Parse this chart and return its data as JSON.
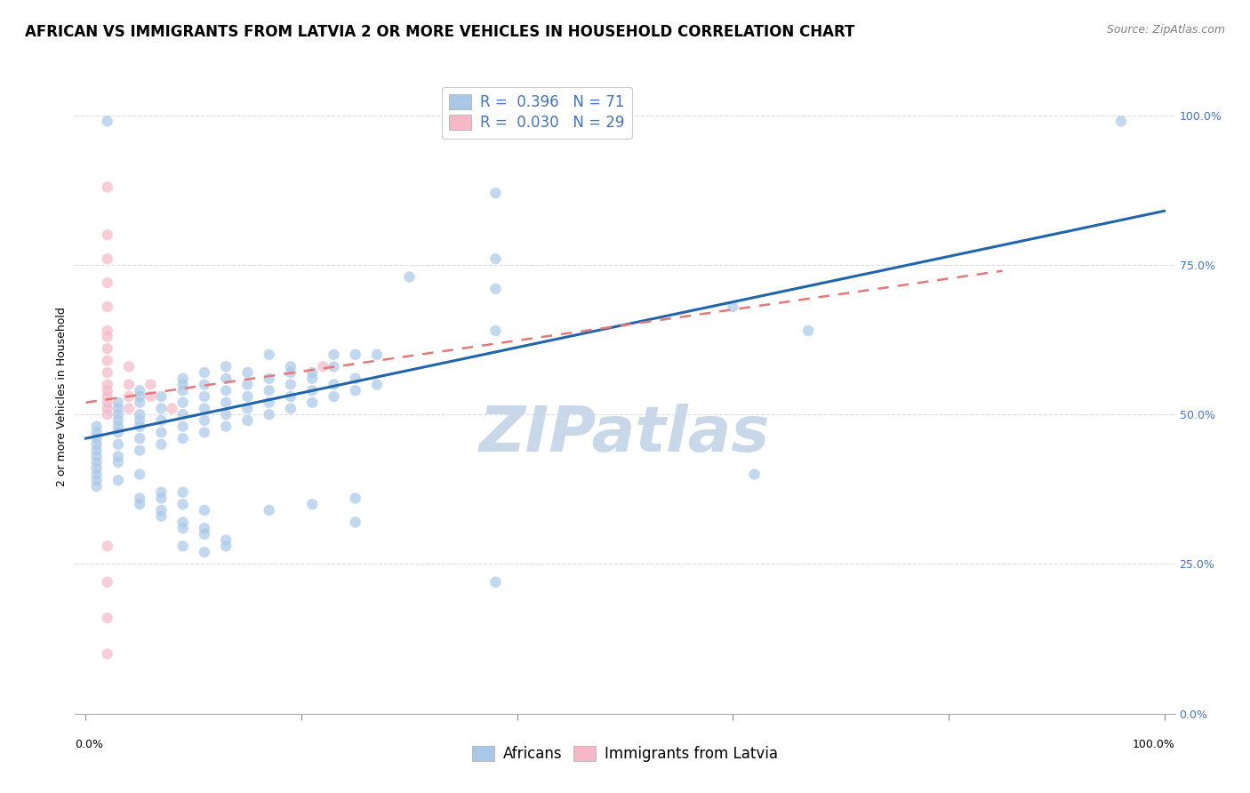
{
  "title": "AFRICAN VS IMMIGRANTS FROM LATVIA 2 OR MORE VEHICLES IN HOUSEHOLD CORRELATION CHART",
  "source": "Source: ZipAtlas.com",
  "ylabel": "2 or more Vehicles in Household",
  "y_tick_labels": [
    "0.0%",
    "25.0%",
    "50.0%",
    "75.0%",
    "100.0%"
  ],
  "y_tick_values": [
    0.0,
    0.25,
    0.5,
    0.75,
    1.0
  ],
  "watermark": "ZIPatlas",
  "blue_color": "#a8c8e8",
  "pink_color": "#f4b8c8",
  "blue_line_color": "#2166ac",
  "pink_line_color": "#e87878",
  "blue_scatter": [
    [
      0.02,
      0.99
    ],
    [
      0.3,
      0.73
    ],
    [
      0.96,
      0.99
    ],
    [
      0.38,
      0.87
    ],
    [
      0.38,
      0.76
    ],
    [
      0.38,
      0.71
    ],
    [
      0.6,
      0.68
    ],
    [
      0.38,
      0.64
    ],
    [
      0.67,
      0.64
    ],
    [
      0.17,
      0.6
    ],
    [
      0.23,
      0.6
    ],
    [
      0.25,
      0.6
    ],
    [
      0.27,
      0.6
    ],
    [
      0.13,
      0.58
    ],
    [
      0.19,
      0.58
    ],
    [
      0.23,
      0.58
    ],
    [
      0.11,
      0.57
    ],
    [
      0.15,
      0.57
    ],
    [
      0.19,
      0.57
    ],
    [
      0.21,
      0.57
    ],
    [
      0.09,
      0.56
    ],
    [
      0.13,
      0.56
    ],
    [
      0.17,
      0.56
    ],
    [
      0.21,
      0.56
    ],
    [
      0.25,
      0.56
    ],
    [
      0.09,
      0.55
    ],
    [
      0.11,
      0.55
    ],
    [
      0.15,
      0.55
    ],
    [
      0.19,
      0.55
    ],
    [
      0.23,
      0.55
    ],
    [
      0.27,
      0.55
    ],
    [
      0.05,
      0.54
    ],
    [
      0.09,
      0.54
    ],
    [
      0.13,
      0.54
    ],
    [
      0.17,
      0.54
    ],
    [
      0.21,
      0.54
    ],
    [
      0.25,
      0.54
    ],
    [
      0.05,
      0.53
    ],
    [
      0.07,
      0.53
    ],
    [
      0.11,
      0.53
    ],
    [
      0.15,
      0.53
    ],
    [
      0.19,
      0.53
    ],
    [
      0.23,
      0.53
    ],
    [
      0.03,
      0.52
    ],
    [
      0.05,
      0.52
    ],
    [
      0.09,
      0.52
    ],
    [
      0.13,
      0.52
    ],
    [
      0.17,
      0.52
    ],
    [
      0.21,
      0.52
    ],
    [
      0.03,
      0.51
    ],
    [
      0.07,
      0.51
    ],
    [
      0.11,
      0.51
    ],
    [
      0.15,
      0.51
    ],
    [
      0.19,
      0.51
    ],
    [
      0.03,
      0.5
    ],
    [
      0.05,
      0.5
    ],
    [
      0.09,
      0.5
    ],
    [
      0.13,
      0.5
    ],
    [
      0.17,
      0.5
    ],
    [
      0.03,
      0.49
    ],
    [
      0.05,
      0.49
    ],
    [
      0.07,
      0.49
    ],
    [
      0.11,
      0.49
    ],
    [
      0.15,
      0.49
    ],
    [
      0.01,
      0.48
    ],
    [
      0.03,
      0.48
    ],
    [
      0.05,
      0.48
    ],
    [
      0.09,
      0.48
    ],
    [
      0.13,
      0.48
    ],
    [
      0.01,
      0.47
    ],
    [
      0.03,
      0.47
    ],
    [
      0.07,
      0.47
    ],
    [
      0.11,
      0.47
    ],
    [
      0.01,
      0.46
    ],
    [
      0.05,
      0.46
    ],
    [
      0.09,
      0.46
    ],
    [
      0.01,
      0.45
    ],
    [
      0.03,
      0.45
    ],
    [
      0.07,
      0.45
    ],
    [
      0.01,
      0.44
    ],
    [
      0.05,
      0.44
    ],
    [
      0.01,
      0.43
    ],
    [
      0.03,
      0.43
    ],
    [
      0.01,
      0.42
    ],
    [
      0.03,
      0.42
    ],
    [
      0.01,
      0.41
    ],
    [
      0.01,
      0.4
    ],
    [
      0.05,
      0.4
    ],
    [
      0.01,
      0.39
    ],
    [
      0.03,
      0.39
    ],
    [
      0.01,
      0.38
    ],
    [
      0.07,
      0.37
    ],
    [
      0.09,
      0.37
    ],
    [
      0.05,
      0.36
    ],
    [
      0.07,
      0.36
    ],
    [
      0.25,
      0.36
    ],
    [
      0.05,
      0.35
    ],
    [
      0.09,
      0.35
    ],
    [
      0.21,
      0.35
    ],
    [
      0.07,
      0.34
    ],
    [
      0.11,
      0.34
    ],
    [
      0.17,
      0.34
    ],
    [
      0.07,
      0.33
    ],
    [
      0.09,
      0.32
    ],
    [
      0.25,
      0.32
    ],
    [
      0.09,
      0.31
    ],
    [
      0.11,
      0.31
    ],
    [
      0.11,
      0.3
    ],
    [
      0.13,
      0.29
    ],
    [
      0.09,
      0.28
    ],
    [
      0.13,
      0.28
    ],
    [
      0.11,
      0.27
    ],
    [
      0.62,
      0.4
    ],
    [
      0.38,
      0.22
    ]
  ],
  "pink_scatter": [
    [
      0.02,
      0.88
    ],
    [
      0.02,
      0.8
    ],
    [
      0.02,
      0.76
    ],
    [
      0.02,
      0.72
    ],
    [
      0.02,
      0.68
    ],
    [
      0.02,
      0.64
    ],
    [
      0.02,
      0.63
    ],
    [
      0.02,
      0.61
    ],
    [
      0.02,
      0.59
    ],
    [
      0.02,
      0.57
    ],
    [
      0.02,
      0.55
    ],
    [
      0.02,
      0.54
    ],
    [
      0.02,
      0.53
    ],
    [
      0.02,
      0.52
    ],
    [
      0.02,
      0.51
    ],
    [
      0.02,
      0.5
    ],
    [
      0.04,
      0.58
    ],
    [
      0.04,
      0.55
    ],
    [
      0.04,
      0.53
    ],
    [
      0.04,
      0.51
    ],
    [
      0.06,
      0.55
    ],
    [
      0.06,
      0.53
    ],
    [
      0.08,
      0.51
    ],
    [
      0.22,
      0.58
    ],
    [
      0.02,
      0.28
    ],
    [
      0.02,
      0.22
    ],
    [
      0.02,
      0.16
    ],
    [
      0.02,
      0.1
    ]
  ],
  "blue_trend_x": [
    0.0,
    1.0
  ],
  "blue_trend_y": [
    0.46,
    0.84
  ],
  "pink_trend_x": [
    0.0,
    0.85
  ],
  "pink_trend_y": [
    0.52,
    0.74
  ],
  "xlim": [
    -0.01,
    1.01
  ],
  "ylim": [
    0.0,
    1.06
  ],
  "background_color": "#ffffff",
  "grid_color": "#dddddd",
  "title_fontsize": 12,
  "axis_label_fontsize": 9,
  "tick_fontsize": 9,
  "legend_fontsize": 12,
  "watermark_color": "#c8d8e8",
  "watermark_fontsize": 52
}
